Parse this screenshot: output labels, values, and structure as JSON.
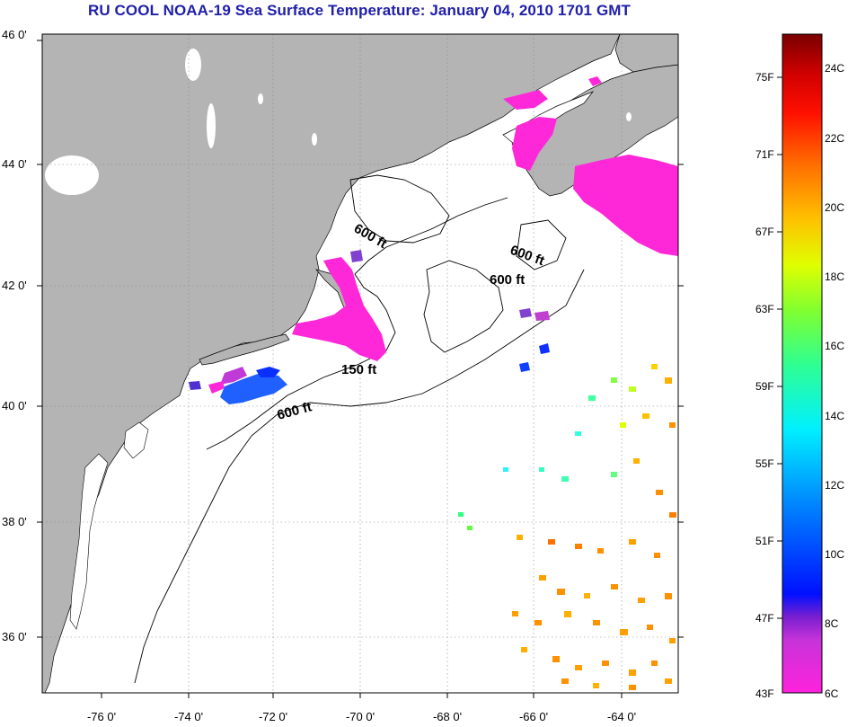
{
  "title": "RU COOL  NOAA-19  Sea Surface Temperature:  January 04, 2010 1701 GMT",
  "axes": {
    "lat_labels": [
      "46 0'",
      "44 0'",
      "42 0'",
      "40 0'",
      "38 0'",
      "36 0'"
    ],
    "lon_labels": [
      "-76 0'",
      "-74 0'",
      "-72 0'",
      "-70 0'",
      "-68 0'",
      "-66 0'",
      "-64 0'"
    ]
  },
  "contours": {
    "label_150": "150 ft",
    "label_600_a": "600 ft",
    "label_600_b": "600 ft",
    "label_600_c": "600 ft",
    "label_600_d": "600 ft"
  },
  "colorbar": {
    "fahrenheit": [
      "75F",
      "71F",
      "67F",
      "63F",
      "59F",
      "55F",
      "51F",
      "47F",
      "43F"
    ],
    "celsius": [
      "24C",
      "22C",
      "20C",
      "18C",
      "16C",
      "14C",
      "12C",
      "10C",
      "8C",
      "6C"
    ],
    "min_color": "#ff22dd",
    "max_color": "#7a0000"
  },
  "colors": {
    "land": "#b4b4b4",
    "title": "#1f1fa8"
  }
}
